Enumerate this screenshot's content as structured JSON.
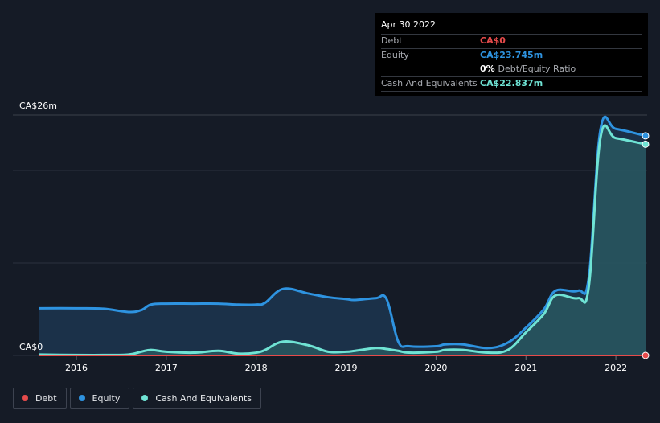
{
  "tooltip": {
    "date": "Apr 30 2022",
    "rows": {
      "debt": {
        "label": "Debt",
        "value": "CA$0"
      },
      "equity": {
        "label": "Equity",
        "value": "CA$23.745m"
      },
      "ratio": {
        "percent": "0%",
        "label": "Debt/Equity Ratio"
      },
      "cash": {
        "label": "Cash And Equivalents",
        "value": "CA$22.837m"
      }
    }
  },
  "legend": {
    "debt": "Debt",
    "equity": "Equity",
    "cash": "Cash And Equivalents"
  },
  "colors": {
    "background": "#151b26",
    "debt": "#e64b4b",
    "equity": "#2e93e0",
    "cash": "#6fe3d4",
    "grid": "#2c323d"
  },
  "chart_data": {
    "type": "area",
    "title": "",
    "xlabel": "",
    "ylabel": "",
    "y_top_label": "CA$26m",
    "y_bottom_label": "CA$0",
    "ylim": [
      0,
      26
    ],
    "xlim": [
      2015.58,
      2022.33
    ],
    "x_ticks": [
      2016,
      2017,
      2018,
      2019,
      2020,
      2021,
      2022
    ],
    "x_tick_labels": [
      "2016",
      "2017",
      "2018",
      "2019",
      "2020",
      "2021",
      "2022"
    ],
    "grid": true,
    "legend_position": "bottom-left",
    "series": [
      {
        "name": "Equity",
        "x": [
          2015.58,
          2016.0,
          2016.3,
          2016.58,
          2016.72,
          2016.83,
          2017.0,
          2017.3,
          2017.58,
          2017.8,
          2018.0,
          2018.1,
          2018.3,
          2018.58,
          2018.8,
          2019.0,
          2019.1,
          2019.33,
          2019.45,
          2019.58,
          2019.7,
          2020.0,
          2020.1,
          2020.3,
          2020.58,
          2020.8,
          2021.0,
          2021.2,
          2021.33,
          2021.58,
          2021.7,
          2021.83,
          2022.0,
          2022.33
        ],
        "values": [
          5.1,
          5.1,
          5.05,
          4.7,
          4.9,
          5.5,
          5.6,
          5.6,
          5.6,
          5.5,
          5.5,
          5.7,
          7.2,
          6.7,
          6.3,
          6.1,
          6.0,
          6.2,
          6.1,
          1.5,
          1.0,
          1.0,
          1.2,
          1.2,
          0.8,
          1.4,
          3.0,
          5.0,
          7.0,
          7.0,
          8.5,
          24.5,
          24.5,
          23.745
        ]
      },
      {
        "name": "Cash And Equivalents",
        "x": [
          2015.58,
          2016.0,
          2016.3,
          2016.58,
          2016.72,
          2016.83,
          2017.0,
          2017.3,
          2017.58,
          2017.8,
          2018.0,
          2018.1,
          2018.3,
          2018.58,
          2018.8,
          2019.0,
          2019.1,
          2019.33,
          2019.45,
          2019.58,
          2019.7,
          2020.0,
          2020.1,
          2020.3,
          2020.58,
          2020.8,
          2021.0,
          2021.2,
          2021.33,
          2021.58,
          2021.7,
          2021.83,
          2022.0,
          2022.33
        ],
        "values": [
          0.1,
          0.05,
          0.05,
          0.1,
          0.4,
          0.6,
          0.4,
          0.3,
          0.5,
          0.2,
          0.3,
          0.6,
          1.5,
          1.1,
          0.4,
          0.4,
          0.5,
          0.8,
          0.7,
          0.5,
          0.3,
          0.4,
          0.6,
          0.6,
          0.3,
          0.6,
          2.5,
          4.5,
          6.5,
          6.2,
          7.5,
          23.6,
          23.5,
          22.837
        ]
      },
      {
        "name": "Debt",
        "x": [
          2015.58,
          2022.33
        ],
        "values": [
          0,
          0
        ]
      }
    ]
  }
}
